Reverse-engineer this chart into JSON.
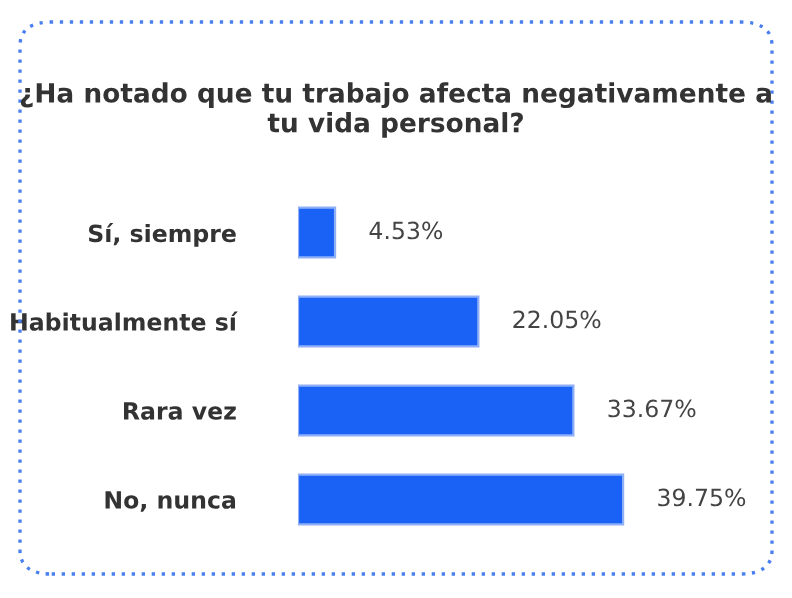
{
  "chart_data": {
    "type": "bar",
    "orientation": "horizontal",
    "title": "¿Ha notado que tu trabajo afecta negativamente a tu vida personal?",
    "categories": [
      "Sí, siempre",
      "Habitualmente sí",
      "Rara vez",
      "No, nunca"
    ],
    "values": [
      4.53,
      22.05,
      33.67,
      39.75
    ],
    "value_labels": [
      "4.53%",
      "22.05%",
      "33.67%",
      "39.75%"
    ],
    "color": "#1a62f5",
    "grid": false,
    "legend": false
  }
}
